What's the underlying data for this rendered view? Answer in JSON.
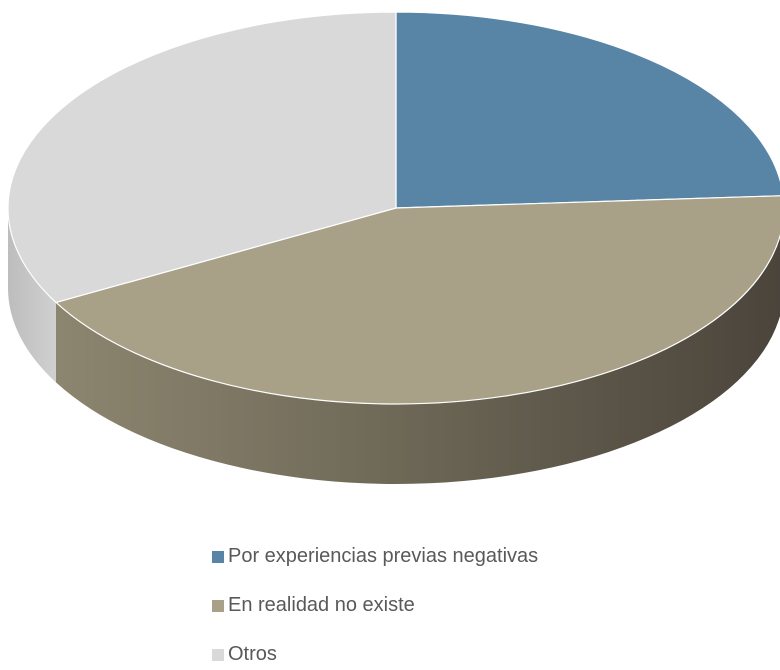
{
  "chart_data": {
    "type": "pie",
    "categories": [
      "Por experiencias previas negativas",
      "En realidad no existe",
      "Otros"
    ],
    "values": [
      24,
      43,
      33
    ],
    "colors": [
      "#5884a6",
      "#a8a087",
      "#d9d9d9"
    ],
    "title": "",
    "legend_position": "bottom"
  },
  "legend": {
    "items": [
      {
        "label": "Por experiencias previas negativas",
        "color": "#5884a6"
      },
      {
        "label": "En realidad no existe",
        "color": "#a8a087"
      },
      {
        "label": "Otros",
        "color": "#d9d9d9"
      }
    ]
  }
}
